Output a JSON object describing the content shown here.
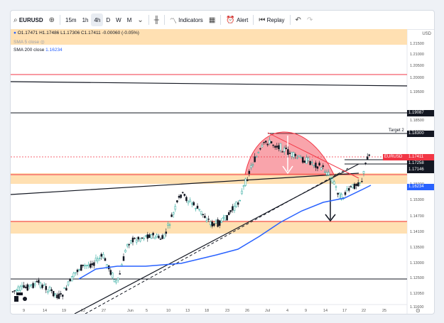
{
  "toolbar": {
    "symbol": "EURUSD",
    "intervals": [
      "15m",
      "1h",
      "4h"
    ],
    "active_interval": "4h",
    "periods": [
      "D",
      "W",
      "M"
    ],
    "indicators_label": "Indicators",
    "alert_label": "Alert",
    "replay_label": "Replay"
  },
  "legend": {
    "ohlc": "O1.17471 H1.17486 L1.17306 C1.17411 -0.00060 (-0.05%)",
    "sma5": "SMA 5 close",
    "sma200_label": "SMA 200 close",
    "sma200_value": "1.16234"
  },
  "axis": {
    "currency": "USD",
    "price_ticks": [
      "1.21500",
      "1.21000",
      "1.20500",
      "1.20000",
      "1.19500",
      "1.18500",
      "1.18000",
      "1.16500",
      "1.15900",
      "1.15300",
      "1.14700",
      "1.14100",
      "1.13500",
      "1.13000",
      "1.12500",
      "1.12050",
      "1.11600"
    ],
    "time_ticks": [
      "9",
      "14",
      "19",
      "22",
      "27",
      "Jun",
      "5",
      "10",
      "13",
      "18",
      "23",
      "26",
      "Jul",
      "4",
      "9",
      "14",
      "17",
      "22",
      "25"
    ]
  },
  "price_labels": {
    "level_190": "1.19087",
    "level_183": "1.18300",
    "current_symbol": "EURUSD",
    "current_price": "1.17411",
    "level_1725": "1.17258",
    "level_1714": "1.17146",
    "sma_value": "1.16234"
  },
  "annotations": {
    "target": "Target 2"
  },
  "colors": {
    "up": "#26a69a",
    "down": "#131722",
    "sma": "#2962ff",
    "zone": "#ffe0b2",
    "red": "#f23645"
  }
}
